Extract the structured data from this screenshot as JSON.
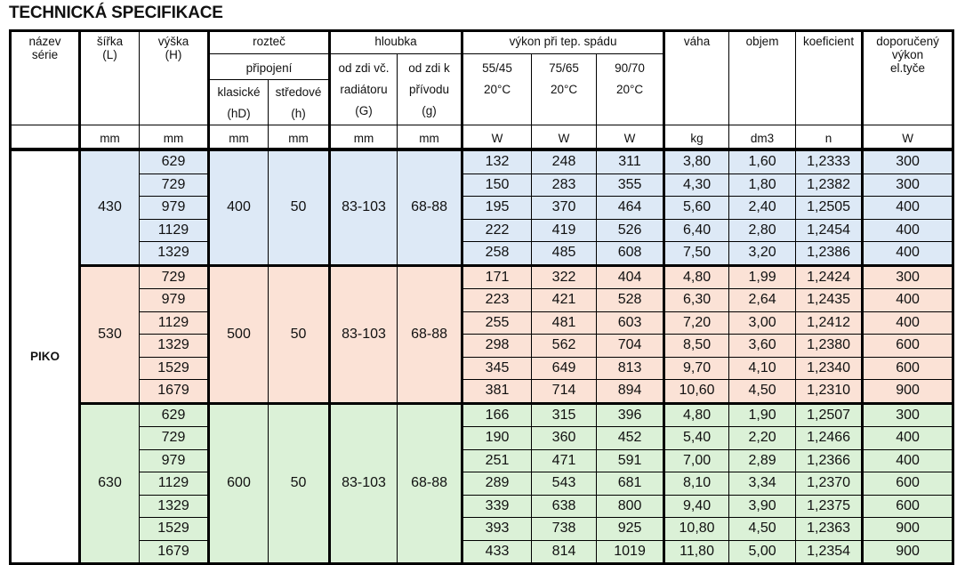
{
  "title": "TECHNICKÁ SPECIFIKACE",
  "headers": {
    "nazev": "název\nsérie",
    "sirka": "šířka\n(L)",
    "vyska": "výška\n(H)",
    "roztec": "rozteč",
    "pripojeni": "připojení",
    "klasicke": "klasické\n(hD)",
    "stredove": "středové\n(h)",
    "hloubka": "hloubka",
    "od_zdi_vc": "od zdi  vč.\nradiátoru\n(G)",
    "od_zdi_k": "od zdi  k\npřívodu\n(g)",
    "vykon": "výkon při tep.  spádu",
    "t1": "55/45\n20°C",
    "t2": "75/65\n20°C",
    "t3": "90/70\n20°C",
    "vaha": "váha",
    "objem": "objem",
    "koeficient": "koeficient",
    "doporuceny": "doporučený\nvýkon\nel.tyče"
  },
  "units": [
    "",
    "mm",
    "mm",
    "mm",
    "mm",
    "mm",
    "mm",
    "W",
    "W",
    "W",
    "kg",
    "dm3",
    "n",
    "W"
  ],
  "series": "PIKO",
  "groups": [
    {
      "width": "430",
      "klasicke": "400",
      "stredove": "50",
      "G": "83-103",
      "g": "68-88",
      "color": "#dde9f6",
      "rows": [
        [
          "629",
          "132",
          "248",
          "311",
          "3,80",
          "1,60",
          "1,2333",
          "300"
        ],
        [
          "729",
          "150",
          "283",
          "355",
          "4,30",
          "1,80",
          "1,2382",
          "300"
        ],
        [
          "979",
          "195",
          "370",
          "464",
          "5,60",
          "2,40",
          "1,2505",
          "400"
        ],
        [
          "1129",
          "222",
          "419",
          "526",
          "6,40",
          "2,80",
          "1,2454",
          "400"
        ],
        [
          "1329",
          "258",
          "485",
          "608",
          "7,50",
          "3,20",
          "1,2386",
          "400"
        ]
      ]
    },
    {
      "width": "530",
      "klasicke": "500",
      "stredove": "50",
      "G": "83-103",
      "g": "68-88",
      "color": "#fbe2d6",
      "rows": [
        [
          "729",
          "171",
          "322",
          "404",
          "4,80",
          "1,99",
          "1,2424",
          "300"
        ],
        [
          "979",
          "223",
          "421",
          "528",
          "6,30",
          "2,64",
          "1,2435",
          "400"
        ],
        [
          "1129",
          "255",
          "481",
          "603",
          "7,20",
          "3,00",
          "1,2412",
          "400"
        ],
        [
          "1329",
          "298",
          "562",
          "704",
          "8,50",
          "3,60",
          "1,2380",
          "600"
        ],
        [
          "1529",
          "345",
          "649",
          "813",
          "9,70",
          "4,10",
          "1,2340",
          "600"
        ],
        [
          "1679",
          "381",
          "714",
          "894",
          "10,60",
          "4,50",
          "1,2310",
          "900"
        ]
      ]
    },
    {
      "width": "630",
      "klasicke": "600",
      "stredove": "50",
      "G": "83-103",
      "g": "68-88",
      "color": "#dbf1d7",
      "rows": [
        [
          "629",
          "166",
          "315",
          "396",
          "4,80",
          "1,90",
          "1,2507",
          "300"
        ],
        [
          "729",
          "190",
          "360",
          "452",
          "5,40",
          "2,20",
          "1,2466",
          "400"
        ],
        [
          "979",
          "251",
          "471",
          "591",
          "7,00",
          "2,89",
          "1,2366",
          "400"
        ],
        [
          "1129",
          "289",
          "543",
          "681",
          "8,10",
          "3,34",
          "1,2370",
          "600"
        ],
        [
          "1329",
          "339",
          "638",
          "800",
          "9,40",
          "3,90",
          "1,2375",
          "600"
        ],
        [
          "1529",
          "393",
          "738",
          "925",
          "10,80",
          "4,50",
          "1,2363",
          "900"
        ],
        [
          "1679",
          "433",
          "814",
          "1019",
          "11,80",
          "5,00",
          "1,2354",
          "900"
        ]
      ]
    }
  ]
}
